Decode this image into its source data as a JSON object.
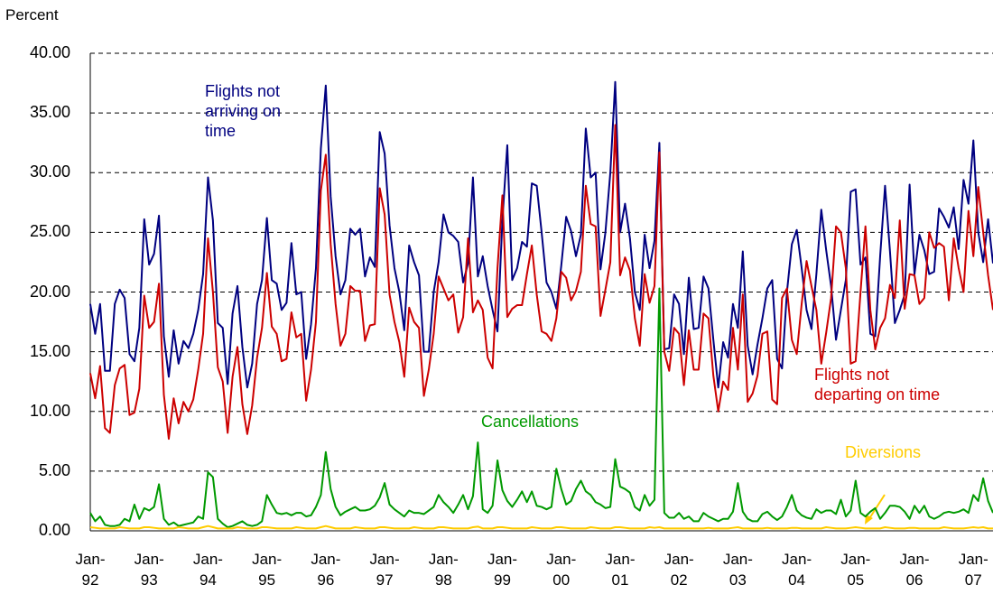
{
  "chart_data": {
    "type": "line",
    "y_label": "Percent",
    "annotations": [
      "Flights not\narriving on\ntime",
      "Flights not\ndeparting on time",
      "Cancellations",
      "Diversions"
    ],
    "categories": [
      "Jan-\n92",
      null,
      null,
      null,
      null,
      null,
      null,
      null,
      null,
      null,
      null,
      null,
      "Jan-\n93",
      null,
      null,
      null,
      null,
      null,
      null,
      null,
      null,
      null,
      null,
      null,
      "Jan-\n94",
      null,
      null,
      null,
      null,
      null,
      null,
      null,
      null,
      null,
      null,
      null,
      "Jan-\n95",
      null,
      null,
      null,
      null,
      null,
      null,
      null,
      null,
      null,
      null,
      null,
      "Jan-\n96",
      null,
      null,
      null,
      null,
      null,
      null,
      null,
      null,
      null,
      null,
      null,
      "Jan-\n97",
      null,
      null,
      null,
      null,
      null,
      null,
      null,
      null,
      null,
      null,
      null,
      "Jan-\n98",
      null,
      null,
      null,
      null,
      null,
      null,
      null,
      null,
      null,
      null,
      null,
      "Jan-\n99",
      null,
      null,
      null,
      null,
      null,
      null,
      null,
      null,
      null,
      null,
      null,
      "Jan-\n00",
      null,
      null,
      null,
      null,
      null,
      null,
      null,
      null,
      null,
      null,
      null,
      "Jan-\n01",
      null,
      null,
      null,
      null,
      null,
      null,
      null,
      null,
      null,
      null,
      null,
      "Jan-\n02",
      null,
      null,
      null,
      null,
      null,
      null,
      null,
      null,
      null,
      null,
      null,
      "Jan-\n03",
      null,
      null,
      null,
      null,
      null,
      null,
      null,
      null,
      null,
      null,
      null,
      "Jan-\n04",
      null,
      null,
      null,
      null,
      null,
      null,
      null,
      null,
      null,
      null,
      null,
      "Jan-\n05",
      null,
      null,
      null,
      null,
      null,
      null,
      null,
      null,
      null,
      null,
      null,
      "Jan-\n06",
      null,
      null,
      null,
      null,
      null,
      null,
      null,
      null,
      null,
      null,
      null,
      "Jan-\n07",
      null,
      null,
      null,
      null
    ],
    "series": [
      {
        "name": "Flights not arriving on time",
        "color": "#000080",
        "values": [
          19,
          16.5,
          19,
          13.4,
          13.4,
          19,
          20.2,
          19.5,
          14.8,
          14.2,
          17,
          26.1,
          22.3,
          23.2,
          26.4,
          16.3,
          12.9,
          16.8,
          14.0,
          15.9,
          15.3,
          16.5,
          18.5,
          21.5,
          29.6,
          26,
          17.4,
          17,
          12.3,
          18.2,
          20.5,
          15.4,
          12,
          14,
          19,
          21,
          26.2,
          21,
          20.7,
          18.5,
          19.1,
          24.1,
          19.8,
          20,
          14.4,
          17.3,
          22,
          32,
          37.3,
          28,
          23,
          19.8,
          21,
          25.3,
          24.8,
          25.3,
          21.3,
          22.9,
          22.1,
          33.4,
          31.6,
          25.6,
          22,
          20,
          16.8,
          23.9,
          22.5,
          21.4,
          15,
          15,
          20,
          22.5,
          26.5,
          25,
          24.7,
          24.2,
          20.8,
          22.4,
          29.6,
          21.3,
          23,
          20.5,
          18.5,
          16.7,
          26,
          32.3,
          21,
          22,
          24.2,
          23.8,
          29.1,
          28.9,
          25,
          20.8,
          20,
          18.6,
          22.2,
          26.3,
          25.1,
          23,
          24.8,
          33.7,
          29.6,
          30,
          21.9,
          25,
          30,
          37.6,
          25,
          27.4,
          24.5,
          20,
          18.5,
          24.8,
          22,
          24.3,
          32.5,
          15.2,
          15.3,
          19.8,
          19,
          14.8,
          21.2,
          16.9,
          17,
          21.3,
          20.3,
          16,
          12,
          15.8,
          14.5,
          19,
          17,
          23.4,
          15.5,
          13.1,
          15.6,
          17.8,
          20.3,
          21,
          14.4,
          13.6,
          20,
          24,
          25.2,
          22,
          18.5,
          16.9,
          21.5,
          26.9,
          23.5,
          20.5,
          16,
          18.5,
          21,
          28.4,
          28.6,
          22.3,
          22.9,
          16.5,
          16.3,
          23,
          28.9,
          23.4,
          17.4,
          18.5,
          19.8,
          29,
          21.5,
          24.8,
          23.5,
          21.5,
          21.7,
          27,
          26.3,
          25.4,
          27.1,
          23.6,
          29.4,
          27.4,
          32.7,
          25,
          22.5,
          26.1,
          22.4
        ]
      },
      {
        "name": "Flights not departing on time",
        "color": "#cc0000",
        "values": [
          13.2,
          11.1,
          13.8,
          8.6,
          8.2,
          12.2,
          13.6,
          13.9,
          9.7,
          9.9,
          11.9,
          19.7,
          17,
          17.5,
          20.7,
          11.4,
          7.7,
          11.1,
          9,
          10.8,
          10,
          11,
          13.5,
          16.5,
          24.5,
          20,
          13.7,
          12.5,
          8.2,
          12.9,
          15.4,
          10.6,
          8.1,
          10.5,
          14.5,
          17,
          21.6,
          17.1,
          16.5,
          14.2,
          14.4,
          18.3,
          16.2,
          16.5,
          10.9,
          13.5,
          17.5,
          28.5,
          31.5,
          24,
          19,
          15.5,
          16.5,
          20.5,
          20.1,
          20.1,
          15.9,
          17.2,
          17.3,
          28.7,
          26.5,
          19.8,
          17.5,
          15.8,
          12.9,
          18.7,
          17.5,
          17,
          11.3,
          13.5,
          16.5,
          21.3,
          20.3,
          19.3,
          19.8,
          16.6,
          17.9,
          24.5,
          18.3,
          19.3,
          18.5,
          14.5,
          13.6,
          22,
          28.1,
          17.9,
          18.6,
          18.9,
          18.9,
          21.5,
          23.9,
          19.8,
          16.7,
          16.5,
          15.9,
          17.8,
          21.7,
          21.2,
          19.3,
          20.1,
          21.7,
          28.9,
          25.7,
          25.5,
          18,
          20.2,
          22.5,
          34,
          21.4,
          22.9,
          21.8,
          17.8,
          15.5,
          21.5,
          19.1,
          20.5,
          31.7,
          15,
          13.4,
          17,
          16.5,
          12.2,
          16.8,
          13.5,
          13.5,
          18.2,
          17.8,
          13,
          10,
          12.5,
          11.8,
          17,
          13.5,
          19.8,
          10.8,
          11.5,
          13,
          16.5,
          16.7,
          11,
          10.6,
          19.5,
          20.3,
          16,
          14.8,
          19,
          22.6,
          20.5,
          18.5,
          14,
          16.6,
          19.5,
          25.5,
          25,
          22,
          14,
          14.2,
          20,
          25.5,
          18.5,
          15.2,
          17,
          17.8,
          20.6,
          19.5,
          26,
          18.6,
          21.5,
          21.4,
          19,
          19.5,
          25,
          23.7,
          24.1,
          23.8,
          19.3,
          24.5,
          22,
          20,
          26.8,
          23,
          28.8,
          25,
          21.4,
          18.5
        ]
      },
      {
        "name": "Cancellations",
        "color": "#009900",
        "values": [
          1.5,
          0.8,
          1.2,
          0.5,
          0.4,
          0.4,
          0.5,
          1,
          0.8,
          2.2,
          1,
          1.9,
          1.7,
          2,
          3.9,
          1,
          0.5,
          0.7,
          0.4,
          0.5,
          0.6,
          0.7,
          1.2,
          1,
          4.9,
          4.5,
          1,
          0.6,
          0.3,
          0.4,
          0.6,
          0.8,
          0.5,
          0.4,
          0.5,
          0.8,
          3,
          2.2,
          1.5,
          1.4,
          1.5,
          1.3,
          1.5,
          1.5,
          1.2,
          1.3,
          2,
          3,
          6.6,
          3.5,
          2,
          1.3,
          1.6,
          1.8,
          2,
          1.7,
          1.7,
          1.8,
          2.1,
          2.8,
          4,
          2.2,
          1.8,
          1.5,
          1.2,
          1.7,
          1.5,
          1.5,
          1.4,
          1.7,
          2,
          3,
          2.4,
          2,
          1.5,
          2.2,
          3,
          1.8,
          2.9,
          7.4,
          1.8,
          1.5,
          2.1,
          5.9,
          3.4,
          2.5,
          2,
          2.6,
          3.3,
          2.4,
          3.3,
          2.1,
          2,
          1.8,
          2,
          5.2,
          3.5,
          2.2,
          2.5,
          3.5,
          4.2,
          3.3,
          3,
          2.4,
          2.2,
          1.9,
          2,
          6,
          3.7,
          3.5,
          3.2,
          2,
          1.7,
          3,
          2.1,
          2.6,
          20.3,
          1.5,
          1.1,
          1.1,
          1.5,
          1,
          1.2,
          0.8,
          0.8,
          1.5,
          1.2,
          1,
          0.8,
          1,
          1,
          1.6,
          4,
          1.6,
          1,
          0.8,
          0.8,
          1.4,
          1.6,
          1.2,
          0.9,
          1.2,
          2,
          3,
          1.7,
          1.3,
          1.1,
          1,
          1.8,
          1.5,
          1.7,
          1.7,
          1.4,
          2.6,
          1.2,
          1.7,
          4.2,
          1.5,
          1.2,
          1.6,
          1.9,
          1,
          1.5,
          2.1,
          2.1,
          2,
          1.6,
          1,
          2.1,
          1.5,
          2.1,
          1.2,
          1,
          1.2,
          1.5,
          1.6,
          1.5,
          1.6,
          1.8,
          1.5,
          3,
          2.5,
          4.4,
          2.5,
          1.5
        ]
      },
      {
        "name": "Diversions",
        "color": "#ffcc00",
        "values": [
          0.3,
          0.25,
          0.2,
          0.2,
          0.2,
          0.2,
          0.3,
          0.25,
          0.2,
          0.2,
          0.2,
          0.3,
          0.3,
          0.25,
          0.2,
          0.2,
          0.2,
          0.2,
          0.3,
          0.25,
          0.2,
          0.2,
          0.2,
          0.3,
          0.4,
          0.3,
          0.2,
          0.2,
          0.2,
          0.2,
          0.3,
          0.25,
          0.2,
          0.2,
          0.2,
          0.3,
          0.3,
          0.25,
          0.2,
          0.2,
          0.2,
          0.2,
          0.3,
          0.25,
          0.2,
          0.2,
          0.2,
          0.3,
          0.4,
          0.3,
          0.2,
          0.2,
          0.2,
          0.2,
          0.3,
          0.25,
          0.2,
          0.2,
          0.2,
          0.3,
          0.3,
          0.25,
          0.2,
          0.2,
          0.2,
          0.2,
          0.3,
          0.25,
          0.2,
          0.2,
          0.2,
          0.3,
          0.3,
          0.25,
          0.2,
          0.2,
          0.2,
          0.2,
          0.3,
          0.35,
          0.2,
          0.2,
          0.2,
          0.3,
          0.3,
          0.25,
          0.2,
          0.2,
          0.2,
          0.2,
          0.3,
          0.25,
          0.2,
          0.2,
          0.2,
          0.3,
          0.3,
          0.25,
          0.2,
          0.2,
          0.2,
          0.2,
          0.3,
          0.25,
          0.2,
          0.2,
          0.2,
          0.3,
          0.3,
          0.25,
          0.2,
          0.2,
          0.2,
          0.2,
          0.3,
          0.25,
          0.3,
          0.2,
          0.2,
          0.2,
          0.2,
          0.2,
          0.2,
          0.2,
          0.2,
          0.2,
          0.25,
          0.2,
          0.2,
          0.2,
          0.2,
          0.25,
          0.3,
          0.2,
          0.2,
          0.2,
          0.2,
          0.2,
          0.25,
          0.2,
          0.2,
          0.2,
          0.2,
          0.25,
          0.25,
          0.2,
          0.2,
          0.2,
          0.2,
          0.2,
          0.3,
          0.25,
          0.2,
          0.2,
          0.2,
          0.25,
          0.3,
          0.25,
          0.2,
          0.2,
          0.2,
          0.2,
          0.3,
          0.25,
          0.2,
          0.2,
          0.2,
          0.25,
          0.25,
          0.2,
          0.2,
          0.2,
          0.2,
          0.2,
          0.3,
          0.25,
          0.2,
          0.2,
          0.2,
          0.25,
          0.3,
          0.25,
          0.3,
          0.2,
          0.2
        ]
      }
    ],
    "ylim": [
      0,
      40
    ],
    "yticks": [
      {
        "value": 0,
        "label": "0.00"
      },
      {
        "value": 5,
        "label": "5.00"
      },
      {
        "value": 10,
        "label": "10.00"
      },
      {
        "value": 15,
        "label": "15.00"
      },
      {
        "value": 20,
        "label": "20.00"
      },
      {
        "value": 25,
        "label": "25.00"
      },
      {
        "value": 30,
        "label": "30.00"
      },
      {
        "value": 35,
        "label": "35.00"
      },
      {
        "value": 40,
        "label": "40.00"
      }
    ],
    "grid": true
  }
}
